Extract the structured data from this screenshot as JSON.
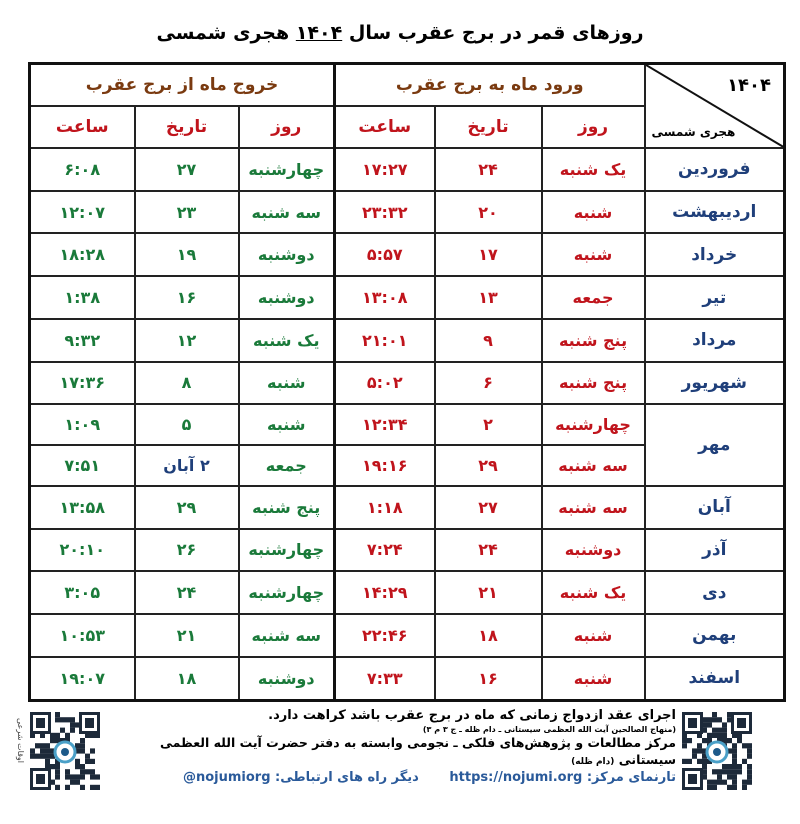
{
  "title": {
    "before": "روزهای قمر در برج عقرب سال",
    "year": "۱۴۰۴",
    "after": "هجری شمسی"
  },
  "header": {
    "corner_year": "۱۴۰۴",
    "corner_calendar": "هجری شمسی",
    "entry_group": "ورود ماه به برج عقرب",
    "exit_group": "خروج ماه از برج عقرب",
    "col_day": "روز",
    "col_date": "تاریخ",
    "col_time": "ساعت"
  },
  "colors": {
    "entry": "#c0141c",
    "exit": "#1a7a3a",
    "month": "#1f3f7a",
    "group_header": "#7a3a10"
  },
  "rows": [
    {
      "month": "فروردین",
      "entry": [
        "یک شنبه",
        "۲۴",
        "۱۷:۲۷"
      ],
      "exit": [
        "چهارشنبه",
        "۲۷",
        "۶:۰۸"
      ]
    },
    {
      "month": "اردیبهشت",
      "entry": [
        "شنبه",
        "۲۰",
        "۲۳:۳۲"
      ],
      "exit": [
        "سه شنبه",
        "۲۳",
        "۱۲:۰۷"
      ]
    },
    {
      "month": "خرداد",
      "entry": [
        "شنبه",
        "۱۷",
        "۵:۵۷"
      ],
      "exit": [
        "دوشنبه",
        "۱۹",
        "۱۸:۲۸"
      ]
    },
    {
      "month": "تیر",
      "entry": [
        "جمعه",
        "۱۳",
        "۱۳:۰۸"
      ],
      "exit": [
        "دوشنبه",
        "۱۶",
        "۱:۳۸"
      ]
    },
    {
      "month": "مرداد",
      "entry": [
        "پنج شنبه",
        "۹",
        "۲۱:۰۱"
      ],
      "exit": [
        "یک شنبه",
        "۱۲",
        "۹:۳۲"
      ]
    },
    {
      "month": "شهریور",
      "entry": [
        "پنج شنبه",
        "۶",
        "۵:۰۲"
      ],
      "exit": [
        "شنبه",
        "۸",
        "۱۷:۳۶"
      ]
    },
    {
      "month": "مهر",
      "span": 2,
      "entry": [
        "چهارشنبه",
        "۲",
        "۱۲:۳۴"
      ],
      "exit": [
        "شنبه",
        "۵",
        "۱:۰۹"
      ]
    },
    {
      "entry": [
        "سه شنبه",
        "۲۹",
        "۱۹:۱۶"
      ],
      "exit": [
        "جمعه",
        "۲ آبان",
        "۷:۵۱"
      ],
      "exit_date_highlight": true
    },
    {
      "month": "آبان",
      "entry": [
        "سه شنبه",
        "۲۷",
        "۱:۱۸"
      ],
      "exit": [
        "پنج شنبه",
        "۲۹",
        "۱۳:۵۸"
      ]
    },
    {
      "month": "آذر",
      "entry": [
        "دوشنبه",
        "۲۴",
        "۷:۲۴"
      ],
      "exit": [
        "چهارشنبه",
        "۲۶",
        "۲۰:۱۰"
      ]
    },
    {
      "month": "دی",
      "entry": [
        "یک شنبه",
        "۲۱",
        "۱۴:۲۹"
      ],
      "exit": [
        "چهارشنبه",
        "۲۴",
        "۳:۰۵"
      ]
    },
    {
      "month": "بهمن",
      "entry": [
        "شنبه",
        "۱۸",
        "۲۲:۴۶"
      ],
      "exit": [
        "سه شنبه",
        "۲۱",
        "۱۰:۵۳"
      ]
    },
    {
      "month": "اسفند",
      "entry": [
        "شنبه",
        "۱۶",
        "۷:۳۳"
      ],
      "exit": [
        "دوشنبه",
        "۱۸",
        "۱۹:۰۷"
      ]
    }
  ],
  "footer": {
    "note": "اجرای عقد ازدواج زمانی که ماه در برج عقرب باشد کراهت دارد.",
    "note_source": "(منهاج الصالحین آیت الله العظمی سیستانی ـ دام ظله ـ ج ۳ م ۳)",
    "center": "مرکز مطالعات و پژوهش‌های فلکی ـ نجومی وابسته به دفتر حضرت آیت الله العظمی سیستانی",
    "center_suffix": "(دام ظله)",
    "website_label": "تارنمای مرکز:",
    "website": "https://nojumi.org",
    "other_label": "دیگر راه های ارتباطی:",
    "handle": "@nojumiorg",
    "qr_left_label": "اوقات شرعی"
  }
}
